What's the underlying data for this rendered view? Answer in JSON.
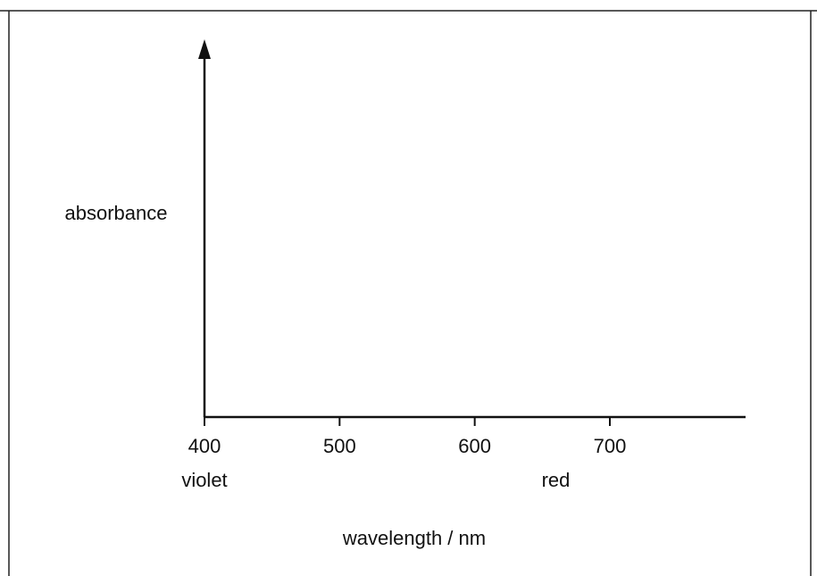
{
  "chart_data": {
    "type": "line",
    "title": "",
    "xlabel": "wavelength / nm",
    "ylabel": "absorbance",
    "xlim": [
      400,
      800
    ],
    "x_ticks": [
      400,
      500,
      600,
      700
    ],
    "x_tick_labels": [
      "400",
      "500",
      "600",
      "700"
    ],
    "x_annotations": [
      {
        "x": 400,
        "text": "violet"
      },
      {
        "x": 660,
        "text": "red"
      }
    ],
    "series": [],
    "grid": false,
    "legend": "none"
  },
  "colors": {
    "ink": "#111111",
    "background": "#ffffff"
  }
}
